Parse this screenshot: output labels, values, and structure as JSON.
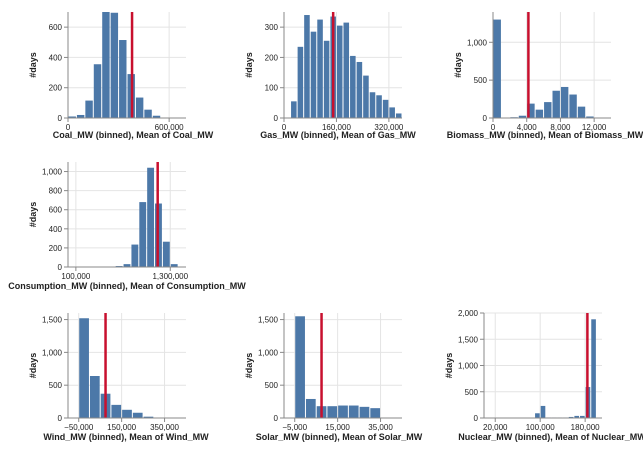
{
  "chart_data": [
    {
      "id": "coal",
      "type": "bar",
      "xlabel": "Coal_MW (binned), Mean of Coal_MW",
      "ylabel": "#days",
      "xdomain": [
        0,
        700000
      ],
      "ydomain": [
        0,
        700
      ],
      "xticks": [
        {
          "value": 0,
          "label": "0"
        },
        {
          "value": 600000,
          "label": "600,000"
        }
      ],
      "yticks": [
        {
          "value": 0,
          "label": "0"
        },
        {
          "value": 200,
          "label": "200"
        },
        {
          "value": 400,
          "label": "400"
        },
        {
          "value": 600,
          "label": "600"
        }
      ],
      "bin_start": 0,
      "bin_width": 50000,
      "values": [
        10,
        20,
        115,
        355,
        700,
        695,
        515,
        290,
        135,
        55,
        15
      ],
      "mean": 380000,
      "colors": {
        "bar": "#4c78a8",
        "mean": "#c8102e"
      }
    },
    {
      "id": "gas",
      "type": "bar",
      "xlabel": "Gas_MW (binned), Mean of Gas_MW",
      "ylabel": "#days",
      "xdomain": [
        0,
        360000
      ],
      "ydomain": [
        0,
        350
      ],
      "xticks": [
        {
          "value": 0,
          "label": "0"
        },
        {
          "value": 160000,
          "label": "160,000"
        },
        {
          "value": 320000,
          "label": "320,000"
        }
      ],
      "yticks": [
        {
          "value": 0,
          "label": "0"
        },
        {
          "value": 100,
          "label": "100"
        },
        {
          "value": 200,
          "label": "200"
        },
        {
          "value": 300,
          "label": "300"
        }
      ],
      "bin_start": 20000,
      "bin_width": 20000,
      "values": [
        55,
        235,
        340,
        285,
        325,
        255,
        335,
        305,
        315,
        205,
        185,
        140,
        85,
        75,
        60,
        35,
        15
      ],
      "mean": 150000,
      "colors": {
        "bar": "#4c78a8",
        "mean": "#c8102e"
      }
    },
    {
      "id": "biomass",
      "type": "bar",
      "xlabel": "Biomass_MW (binned), Mean of Biomass_MW",
      "ylabel": "#days",
      "xdomain": [
        0,
        14000
      ],
      "ydomain": [
        0,
        1400
      ],
      "xticks": [
        {
          "value": 0,
          "label": "0"
        },
        {
          "value": 4000,
          "label": "4,000"
        },
        {
          "value": 8000,
          "label": "8,000"
        },
        {
          "value": 12000,
          "label": "12,000"
        }
      ],
      "yticks": [
        {
          "value": 0,
          "label": "0"
        },
        {
          "value": 500,
          "label": "500"
        },
        {
          "value": 1000,
          "label": "1,000"
        }
      ],
      "bin_start": 0,
      "bin_width": 1000,
      "values": [
        1300,
        5,
        10,
        30,
        190,
        110,
        210,
        360,
        410,
        310,
        150,
        20
      ],
      "mean": 4200,
      "colors": {
        "bar": "#4c78a8",
        "mean": "#c8102e"
      }
    },
    {
      "id": "consumption",
      "type": "bar",
      "xlabel": "Consumption_MW (binned), Mean of Consumption_MW",
      "ylabel": "#days",
      "xdomain": [
        0,
        1500000
      ],
      "ydomain": [
        0,
        1100
      ],
      "xticks": [
        {
          "value": 100000,
          "label": "100,000"
        },
        {
          "value": 1300000,
          "label": "1,300,000"
        }
      ],
      "yticks": [
        {
          "value": 0,
          "label": "0"
        },
        {
          "value": 200,
          "label": "200"
        },
        {
          "value": 400,
          "label": "400"
        },
        {
          "value": 600,
          "label": "600"
        },
        {
          "value": 800,
          "label": "800"
        },
        {
          "value": 1000,
          "label": "1,000"
        }
      ],
      "bin_start": 0,
      "bin_width": 100000,
      "values": [
        0,
        0,
        0,
        0,
        0,
        5,
        10,
        30,
        235,
        680,
        1040,
        665,
        265,
        30,
        0
      ],
      "mean": 1140000,
      "colors": {
        "bar": "#4c78a8",
        "mean": "#c8102e"
      }
    },
    {
      "id": "wind",
      "type": "bar",
      "xlabel": "Wind_MW (binned), Mean of Wind_MW",
      "ylabel": "#days",
      "xdomain": [
        -100000,
        450000
      ],
      "ydomain": [
        0,
        1600
      ],
      "xticks": [
        {
          "value": -50000,
          "label": "−50,000"
        },
        {
          "value": 150000,
          "label": "150,000"
        },
        {
          "value": 350000,
          "label": "350,000"
        }
      ],
      "yticks": [
        {
          "value": 0,
          "label": "0"
        },
        {
          "value": 500,
          "label": "500"
        },
        {
          "value": 1000,
          "label": "1,000"
        },
        {
          "value": 1500,
          "label": "1,500"
        }
      ],
      "bin_start": -50000,
      "bin_width": 50000,
      "values": [
        1520,
        640,
        370,
        200,
        125,
        80,
        20
      ],
      "mean": 75000,
      "colors": {
        "bar": "#4c78a8",
        "mean": "#c8102e"
      }
    },
    {
      "id": "solar",
      "type": "bar",
      "xlabel": "Solar_MW (binned), Mean of Solar_MW",
      "ylabel": "#days",
      "xdomain": [
        -10000,
        45000
      ],
      "ydomain": [
        0,
        1600
      ],
      "xticks": [
        {
          "value": -5000,
          "label": "−5,000"
        },
        {
          "value": 15000,
          "label": "15,000"
        },
        {
          "value": 35000,
          "label": "35,000"
        }
      ],
      "yticks": [
        {
          "value": 0,
          "label": "0"
        },
        {
          "value": 500,
          "label": "500"
        },
        {
          "value": 1000,
          "label": "1,000"
        },
        {
          "value": 1500,
          "label": "1,500"
        }
      ],
      "bin_start": -5000,
      "bin_width": 5000,
      "values": [
        1550,
        290,
        180,
        180,
        190,
        190,
        170,
        150
      ],
      "mean": 7500,
      "colors": {
        "bar": "#4c78a8",
        "mean": "#c8102e"
      }
    },
    {
      "id": "nuclear",
      "type": "bar",
      "xlabel": "Nuclear_MW (binned), Mean of Nuclear_MW",
      "ylabel": "#days",
      "xdomain": [
        0,
        210000
      ],
      "ydomain": [
        0,
        2000
      ],
      "xticks": [
        {
          "value": 20000,
          "label": "20,000"
        },
        {
          "value": 100000,
          "label": "100,000"
        },
        {
          "value": 180000,
          "label": "180,000"
        }
      ],
      "yticks": [
        {
          "value": 0,
          "label": "0"
        },
        {
          "value": 500,
          "label": "500"
        },
        {
          "value": 1000,
          "label": "1,000"
        },
        {
          "value": 1500,
          "label": "1,500"
        },
        {
          "value": 2000,
          "label": "2,000"
        }
      ],
      "bin_start": 10000,
      "bin_width": 10000,
      "values": [
        5,
        5,
        5,
        5,
        5,
        5,
        5,
        5,
        90,
        230,
        10,
        10,
        10,
        10,
        20,
        40,
        40,
        590,
        1880
      ],
      "mean": 184000,
      "colors": {
        "bar": "#4c78a8",
        "mean": "#c8102e"
      }
    }
  ]
}
